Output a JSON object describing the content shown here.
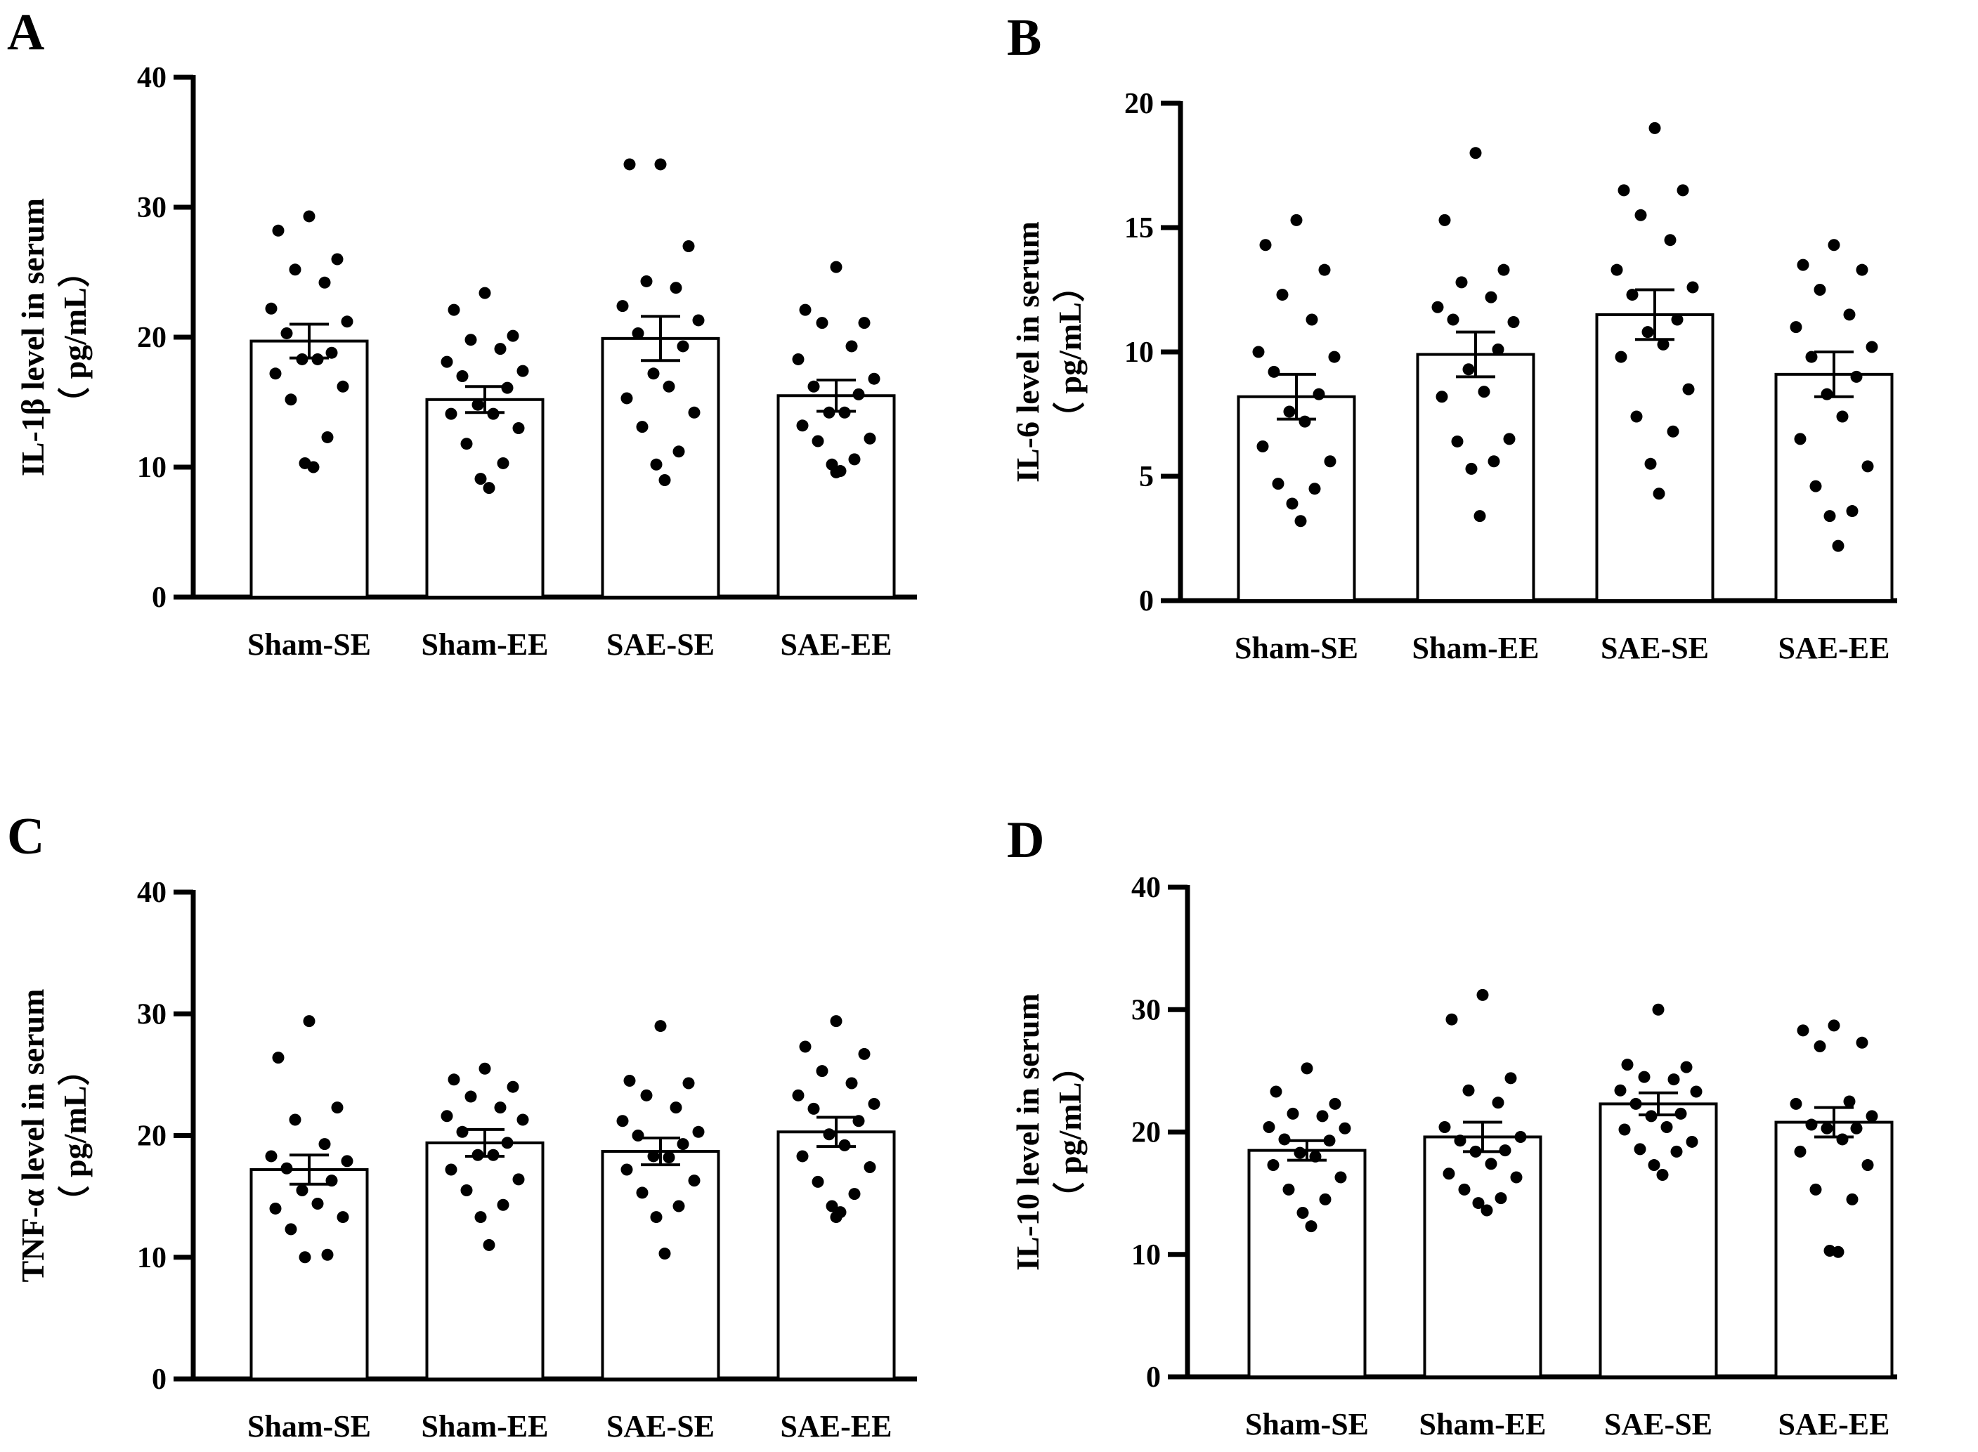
{
  "chart_data": [
    {
      "panel": "A",
      "type": "bar",
      "categories": [
        "Sham-SE",
        "Sham-EE",
        "SAE-SE",
        "SAE-EE"
      ],
      "ylabel": "IL-1β level in serum",
      "yunit": "（ pg/mL）",
      "ylim": [
        0,
        40
      ],
      "yticks": [
        0,
        10,
        20,
        30,
        40
      ],
      "values": [
        19.7,
        15.2,
        19.9,
        15.5
      ],
      "sem": [
        1.3,
        1.0,
        1.7,
        1.2
      ],
      "points": [
        [
          29.3,
          28.2,
          26.0,
          25.2,
          24.2,
          22.2,
          21.2,
          20.3,
          18.8,
          18.3,
          18.3,
          17.2,
          16.2,
          15.2,
          12.3,
          10.3,
          10.0
        ],
        [
          23.4,
          22.1,
          20.1,
          19.8,
          19.1,
          18.1,
          17.4,
          17.0,
          16.1,
          14.8,
          14.1,
          14.1,
          13.0,
          11.8,
          10.3,
          9.1,
          8.4
        ],
        [
          33.3,
          33.3,
          27.0,
          24.3,
          23.8,
          22.4,
          21.3,
          20.3,
          19.3,
          17.2,
          16.2,
          15.3,
          14.2,
          13.1,
          11.2,
          10.2,
          9.0
        ],
        [
          25.4,
          22.1,
          21.1,
          21.1,
          19.3,
          18.3,
          16.8,
          16.2,
          15.6,
          14.2,
          14.2,
          13.2,
          12.2,
          12.0,
          10.6,
          10.2,
          9.7,
          9.6
        ]
      ]
    },
    {
      "panel": "B",
      "type": "bar",
      "categories": [
        "Sham-SE",
        "Sham-EE",
        "SAE-SE",
        "SAE-EE"
      ],
      "ylabel": "IL-6 level in serum",
      "yunit": "（ pg/mL）",
      "ylim": [
        0,
        20
      ],
      "yticks": [
        0,
        5,
        10,
        15,
        20
      ],
      "values": [
        8.2,
        9.9,
        11.5,
        9.1
      ],
      "sem": [
        0.9,
        0.9,
        1.0,
        0.9
      ],
      "points": [
        [
          15.3,
          14.3,
          13.3,
          12.3,
          11.3,
          10.0,
          9.8,
          9.2,
          8.3,
          7.6,
          7.2,
          6.2,
          5.6,
          4.7,
          4.5,
          3.9,
          3.2
        ],
        [
          18.0,
          15.3,
          13.3,
          12.8,
          12.2,
          11.8,
          11.2,
          11.3,
          10.1,
          9.3,
          8.4,
          8.2,
          6.5,
          6.4,
          5.6,
          5.3,
          3.4
        ],
        [
          19.0,
          16.5,
          16.5,
          15.5,
          14.5,
          13.3,
          12.6,
          12.3,
          11.3,
          10.8,
          10.3,
          9.8,
          8.5,
          7.4,
          6.8,
          5.5,
          4.3
        ],
        [
          14.3,
          13.5,
          13.3,
          12.5,
          11.5,
          11.0,
          10.2,
          9.8,
          9.0,
          8.3,
          7.4,
          6.5,
          5.4,
          4.6,
          3.6,
          3.4,
          2.2
        ]
      ]
    },
    {
      "panel": "C",
      "type": "bar",
      "categories": [
        "Sham-SE",
        "Sham-EE",
        "SAE-SE",
        "SAE-EE"
      ],
      "ylabel": "TNF-α level in serum",
      "yunit": "（ pg/mL）",
      "ylim": [
        0,
        40
      ],
      "yticks": [
        0,
        10,
        20,
        30,
        40
      ],
      "values": [
        17.2,
        19.4,
        18.7,
        20.3
      ],
      "sem": [
        1.2,
        1.1,
        1.1,
        1.2
      ],
      "points": [
        [
          29.4,
          26.4,
          22.3,
          21.3,
          19.3,
          18.3,
          17.9,
          17.3,
          16.3,
          15.5,
          14.4,
          14.0,
          13.3,
          12.3,
          10.2,
          10.0
        ],
        [
          25.5,
          24.6,
          24.0,
          23.2,
          22.3,
          21.6,
          21.3,
          20.3,
          19.4,
          18.4,
          18.4,
          17.2,
          16.4,
          15.5,
          14.3,
          13.3,
          11.0
        ],
        [
          29.0,
          24.5,
          24.3,
          23.3,
          22.3,
          21.2,
          20.3,
          20.0,
          19.3,
          18.3,
          18.2,
          17.2,
          16.3,
          15.3,
          14.2,
          13.3,
          10.3
        ],
        [
          29.4,
          27.3,
          26.7,
          25.3,
          24.3,
          23.3,
          22.6,
          22.2,
          21.2,
          20.1,
          19.2,
          18.3,
          17.4,
          16.2,
          15.2,
          14.2,
          13.7,
          13.3
        ]
      ]
    },
    {
      "panel": "D",
      "type": "bar",
      "categories": [
        "Sham-SE",
        "Sham-EE",
        "SAE-SE",
        "SAE-EE"
      ],
      "ylabel": "IL-10 level in serum",
      "yunit": "（ pg/mL）",
      "ylim": [
        0,
        40
      ],
      "yticks": [
        0,
        10,
        20,
        30,
        40
      ],
      "values": [
        18.5,
        19.6,
        22.3,
        20.8
      ],
      "sem": [
        0.8,
        1.2,
        0.9,
        1.2
      ],
      "points": [
        [
          25.2,
          23.3,
          22.3,
          21.5,
          21.3,
          20.4,
          20.3,
          19.4,
          19.3,
          18.3,
          18.0,
          17.3,
          16.3,
          15.3,
          14.5,
          13.4,
          12.3
        ],
        [
          31.2,
          29.2,
          24.4,
          23.4,
          22.4,
          20.4,
          19.6,
          19.3,
          18.5,
          18.4,
          17.4,
          16.6,
          16.3,
          15.3,
          14.6,
          14.2,
          13.6
        ],
        [
          30.0,
          25.5,
          25.3,
          24.5,
          24.3,
          23.4,
          23.3,
          22.3,
          21.5,
          21.3,
          20.4,
          20.2,
          19.2,
          18.6,
          18.4,
          17.3,
          16.5
        ],
        [
          28.7,
          28.3,
          27.3,
          27.0,
          22.5,
          22.3,
          21.3,
          20.6,
          20.3,
          20.3,
          19.4,
          18.4,
          17.3,
          15.3,
          14.5,
          10.3,
          10.2
        ]
      ]
    }
  ]
}
